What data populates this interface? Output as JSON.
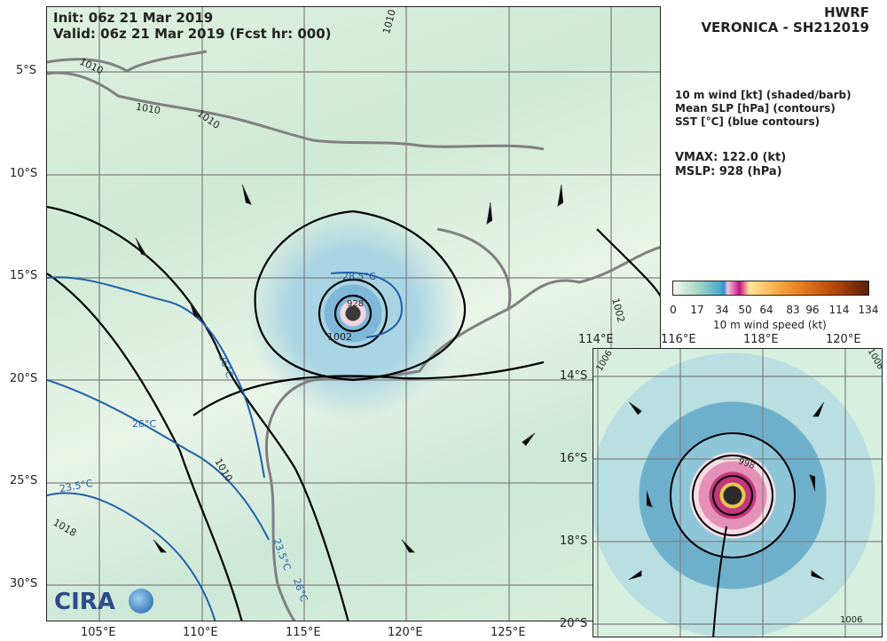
{
  "header": {
    "init": "Init: 06z 21 Mar 2019",
    "valid": "Valid: 06z 21 Mar 2019 (Fcst hr: 000)",
    "model": "HWRF",
    "storm": "VERONICA - SH212019"
  },
  "legend_text": {
    "line1": "10 m wind [kt] (shaded/barb)",
    "line2": "Mean SLP [hPa] (contours)",
    "line3": "SST [°C] (blue contours)",
    "vmax": "VMAX: 122.0 (kt)",
    "mslp": "MSLP:  928 (hPa)"
  },
  "main_map": {
    "lat_labels": [
      "5°S",
      "10°S",
      "15°S",
      "20°S",
      "25°S",
      "30°S"
    ],
    "lon_labels": [
      "105°E",
      "110°E",
      "115°E",
      "120°E",
      "125°E"
    ],
    "contour_labels": [
      "1010",
      "1010",
      "1010",
      "1010",
      "1010",
      "1002",
      "1002",
      "1010",
      "1018"
    ],
    "sst_labels": [
      "28.5°C",
      "26°C",
      "26°C",
      "23.5°C",
      "23.5°C",
      "26°C"
    ],
    "storm_label": "928"
  },
  "inset_map": {
    "lat_labels": [
      "14°S",
      "16°S",
      "18°S",
      "20°S"
    ],
    "lon_labels": [
      "114°E",
      "116°E",
      "118°E",
      "120°E"
    ],
    "contour_labels": [
      "1006",
      "1006",
      "1006",
      "998"
    ]
  },
  "colorbar": {
    "ticks": [
      "0",
      "17",
      "34",
      "50",
      "64",
      "83",
      "96",
      "114",
      "134"
    ],
    "label": "10 m wind speed (kt)"
  },
  "logo": {
    "text": "CIRA"
  },
  "colors": {
    "land_outline": "#808080",
    "slp_contour": "#000000",
    "sst_contour": "#1f5fa8",
    "grid": "#7f7f7f"
  }
}
